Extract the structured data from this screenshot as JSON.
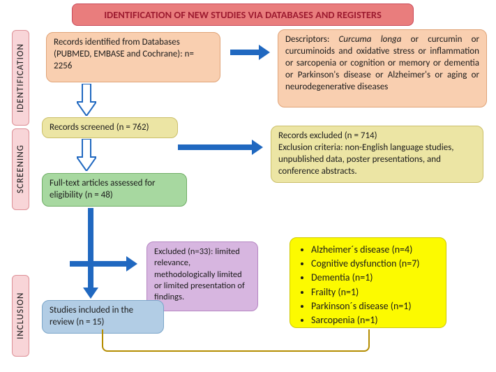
{
  "colors": {
    "header_bg": "#e97d7d",
    "header_text": "#9d1b30",
    "header_border": "#c94a5a",
    "ident_label_bg": "#f8d5d8",
    "ident_label_border": "#dd8f96",
    "screen_label_bg": "#f8d5d8",
    "incl_label_bg": "#f8d5d8",
    "peach_bg": "#f9cfb0",
    "peach_border": "#e0a377",
    "khaki_bg": "#ece5a4",
    "khaki_border": "#cbbf6a",
    "green_bg": "#a7d8a0",
    "green_border": "#6fae65",
    "purple_bg": "#d7b6e0",
    "purple_border": "#b585c2",
    "blue_bg": "#b2cde5",
    "blue_border": "#7ba6c9",
    "yellow_bg": "#fcfa00",
    "yellow_border": "#cfc900",
    "arrow_color": "#2068c0",
    "bracket_color": "#b48c00",
    "text_color": "#1a1a1a"
  },
  "header": "IDENTIFICATION OF NEW STUDIES VIA DATABASES AND REGISTERS",
  "labels": {
    "identification": "IDENTIFICATION",
    "screening": "SCREENING",
    "inclusion": "INCLUSION"
  },
  "boxes": {
    "records_identified": "Records identified from Databases (PUBMED, EMBASE and Cochrane): n= 2256",
    "descriptors_prefix": "Descriptors: ",
    "descriptors_italic": "Curcuma longa",
    "descriptors_rest": " or curcumin or curcuminoids and oxidative stress or inflammation or sarcopenia or cognition or memory or dementia or Parkinson's disease or Alzheimer's or aging or neurodegenerative diseases",
    "records_screened": "Records screened (n = 762)",
    "records_excluded": "Records excluded (n = 714)\nExclusion criteria: non-English language studies, unpublished data, poster presentations, and conference abstracts.",
    "fulltext": "Full-text articles assessed for eligibility (n = 48)",
    "excluded33": "Excluded (n=33): limited relevance, methodologically limited or limited presentation of findings.",
    "included": "Studies included in  the review (n = 15)"
  },
  "outcomes": [
    "Alzheimer´s disease (n=4)",
    "Cognitive dysfunction (n=7)",
    "Dementia (n=1)",
    "Frailty (n=1)",
    "Parkinson´s disease (n=1)",
    "Sarcopenia (n=1)"
  ]
}
